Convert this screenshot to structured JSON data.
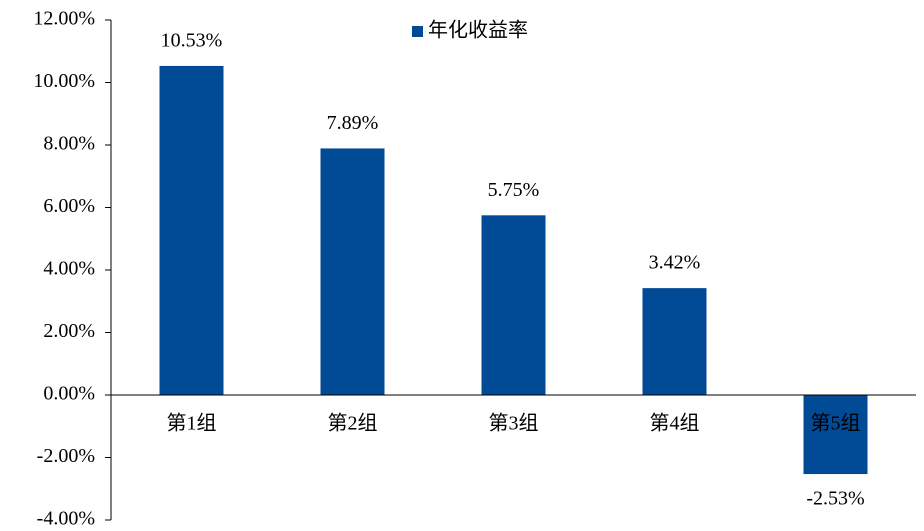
{
  "chart_data": {
    "type": "bar",
    "categories": [
      "第1组",
      "第2组",
      "第3组",
      "第4组",
      "第5组"
    ],
    "series": [
      {
        "name": "年化收益率",
        "color": "#004a96",
        "values": [
          10.53,
          7.89,
          5.75,
          3.42,
          -2.53
        ],
        "value_labels": [
          "10.53%",
          "7.89%",
          "5.75%",
          "3.42%",
          "-2.53%"
        ]
      }
    ],
    "ylim": [
      -4,
      12
    ],
    "yticks": [
      {
        "value": -4,
        "label": "-4.00%"
      },
      {
        "value": -2,
        "label": "-2.00%"
      },
      {
        "value": 0,
        "label": "0.00%"
      },
      {
        "value": 2,
        "label": "2.00%"
      },
      {
        "value": 4,
        "label": "4.00%"
      },
      {
        "value": 6,
        "label": "6.00%"
      },
      {
        "value": 8,
        "label": "8.00%"
      },
      {
        "value": 10,
        "label": "10.00%"
      },
      {
        "value": 12,
        "label": "12.00%"
      }
    ],
    "legend": "top"
  }
}
